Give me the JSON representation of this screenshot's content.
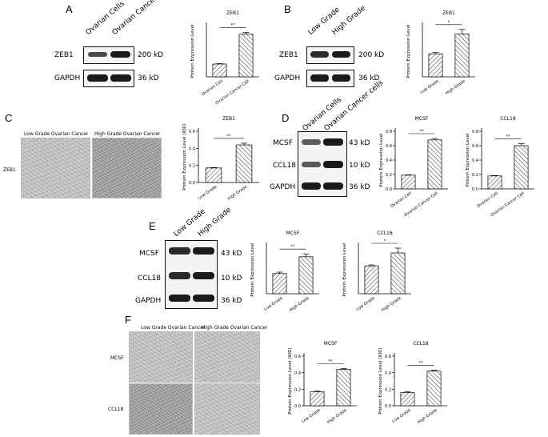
{
  "panels": {
    "A": {
      "letter": "A",
      "blot": {
        "lanes": [
          "Ovarian Cells",
          "Ovarian Cancer cells"
        ],
        "rows": [
          {
            "name": "ZEB1",
            "size": "200 kD"
          },
          {
            "name": "GAPDH",
            "size": "36 kD"
          }
        ]
      }
    },
    "B": {
      "letter": "B",
      "blot": {
        "lanes": [
          "Low Grade",
          "High Grade"
        ],
        "rows": [
          {
            "name": "ZEB1",
            "size": "200 kD"
          },
          {
            "name": "GAPDH",
            "size": "36 kD"
          }
        ]
      }
    },
    "C": {
      "letter": "C",
      "ihc": {
        "columns": [
          "Low Grade Ovarian Cancer",
          "High Grade Ovarian Cancer"
        ],
        "rows": [
          "ZEB1"
        ]
      }
    },
    "D": {
      "letter": "D",
      "blot": {
        "lanes": [
          "Ovarian Cells",
          "Ovarian Cancer cells"
        ],
        "rows": [
          {
            "name": "MCSF",
            "size": "43 kD"
          },
          {
            "name": "CCL18",
            "size": "10 kD"
          },
          {
            "name": "GAPDH",
            "size": "36 kD"
          }
        ]
      }
    },
    "E": {
      "letter": "E",
      "blot": {
        "lanes": [
          "Low Grade",
          "High Grade"
        ],
        "rows": [
          {
            "name": "MCSF",
            "size": "43 kD"
          },
          {
            "name": "CCL18",
            "size": "10 kD"
          },
          {
            "name": "GAPDH",
            "size": "36 kD"
          }
        ]
      }
    },
    "F": {
      "letter": "F",
      "ihc": {
        "columns": [
          "Low Grade Ovarian Cancer",
          "High Grade Ovarian Cancer"
        ],
        "rows": [
          "MCSF",
          "CCL18"
        ]
      }
    }
  },
  "chart_data": [
    {
      "id": "A-ZEB1",
      "type": "bar",
      "title": "ZEB1",
      "ylabel": "Protein Expression Level",
      "categories": [
        "Ovarian Cell",
        "Ovarian Cancer Cell"
      ],
      "values": [
        0.15,
        0.5
      ],
      "errors": [
        0.005,
        0.02
      ],
      "ylim": [
        0,
        0.6
      ],
      "yticks": [],
      "significance": "**"
    },
    {
      "id": "B-ZEB1",
      "type": "bar",
      "title": "ZEB1",
      "ylabel": "Protein Expression Level",
      "categories": [
        "Low Grade",
        "High Grade"
      ],
      "values": [
        0.36,
        0.67
      ],
      "errors": [
        0.02,
        0.07
      ],
      "ylim": [
        0,
        0.8
      ],
      "yticks": [],
      "significance": "*"
    },
    {
      "id": "C-ZEB1",
      "type": "bar",
      "title": "ZEB1",
      "ylabel": "Protein Expression Level (IOD)",
      "categories": [
        "Low Grade",
        "High Grade"
      ],
      "values": [
        0.17,
        0.44
      ],
      "errors": [
        0.005,
        0.02
      ],
      "ylim": [
        0,
        0.6
      ],
      "yticks": [
        "0.0",
        "0.2",
        "0.4",
        "0.6"
      ],
      "significance": "**"
    },
    {
      "id": "D-MCSF",
      "type": "bar",
      "title": "MCSF",
      "ylabel": "Protein Expression Level",
      "categories": [
        "Ovarian Cell",
        "Ovarian Cancer Cell"
      ],
      "values": [
        0.19,
        0.68
      ],
      "errors": [
        0.005,
        0.02
      ],
      "ylim": [
        0,
        0.8
      ],
      "yticks": [
        "0.0",
        "0.2",
        "0.4",
        "0.6",
        "0.8"
      ],
      "significance": "**"
    },
    {
      "id": "D-CCL18",
      "type": "bar",
      "title": "CCL18",
      "ylabel": "Protein Expression Level",
      "categories": [
        "Ovarian Cell",
        "Ovarian Cancer Cell"
      ],
      "values": [
        0.18,
        0.6
      ],
      "errors": [
        0.005,
        0.03
      ],
      "ylim": [
        0,
        0.8
      ],
      "yticks": [
        "0.0",
        "0.2",
        "0.4",
        "0.6",
        "0.8"
      ],
      "significance": "**"
    },
    {
      "id": "E-MCSF",
      "type": "bar",
      "title": "MCSF",
      "ylabel": "Protein Expression Level",
      "categories": [
        "Low Grade",
        "High Grade"
      ],
      "values": [
        0.42,
        0.77
      ],
      "errors": [
        0.03,
        0.06
      ],
      "ylim": [
        0,
        1.0
      ],
      "yticks": [],
      "significance": "**"
    },
    {
      "id": "E-CCL18",
      "type": "bar",
      "title": "CCL18",
      "ylabel": "Protein Expression Level",
      "categories": [
        "Low Grade",
        "High Grade"
      ],
      "values": [
        0.58,
        0.85
      ],
      "errors": [
        0.02,
        0.1
      ],
      "ylim": [
        0,
        1.0
      ],
      "yticks": [],
      "significance": "*"
    },
    {
      "id": "F-MCSF",
      "type": "bar",
      "title": "MCSF",
      "ylabel": "Protein Expression Level (IOD)",
      "categories": [
        "Low Grade",
        "High Grade"
      ],
      "values": [
        0.17,
        0.44
      ],
      "errors": [
        0.01,
        0.01
      ],
      "ylim": [
        0,
        0.6
      ],
      "yticks": [
        "0.0",
        "0.2",
        "0.4",
        "0.6"
      ],
      "significance": "**"
    },
    {
      "id": "F-CCL18",
      "type": "bar",
      "title": "CCL18",
      "ylabel": "Protein Expression Level (IOD)",
      "categories": [
        "Low Grade",
        "High Grade"
      ],
      "values": [
        0.16,
        0.42
      ],
      "errors": [
        0.01,
        0.01
      ],
      "ylim": [
        0,
        0.6
      ],
      "yticks": [
        "0.0",
        "0.2",
        "0.4",
        "0.6"
      ],
      "significance": "**"
    }
  ]
}
